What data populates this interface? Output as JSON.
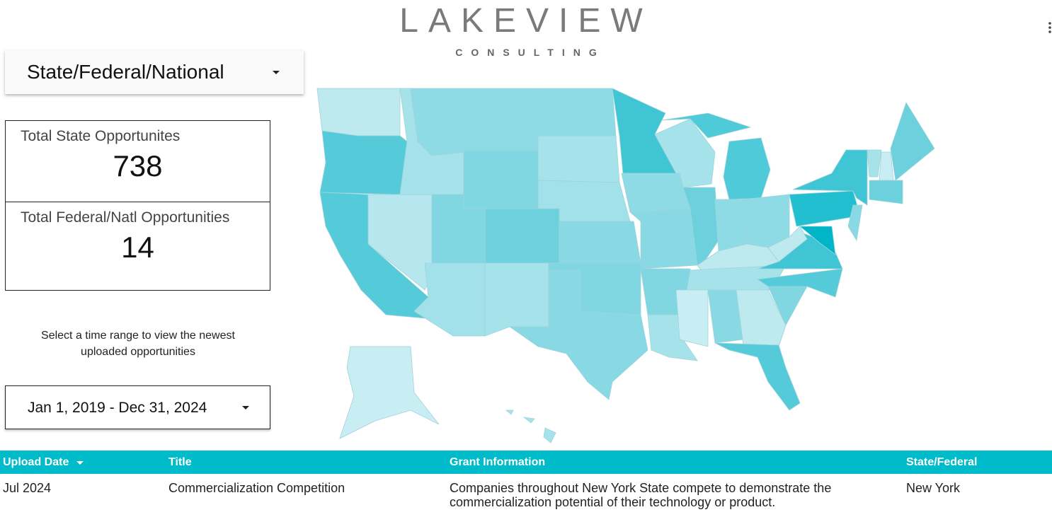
{
  "logo": {
    "title": "LAKEVIEW",
    "subtitle": "CONSULTING"
  },
  "dropdown": {
    "label": "State/Federal/National"
  },
  "scorecards": [
    {
      "label": "Total State Opportunites",
      "value": 738
    },
    {
      "label": "Total Federal/Natl Opportunities",
      "value": 14
    }
  ],
  "note": "Select a time range to view the newest uploaded opportunities",
  "date_range": {
    "label": "Jan 1, 2019 - Dec 31, 2024"
  },
  "table": {
    "columns": [
      "Upload Date",
      "Title",
      "Grant Information",
      "State/Federal"
    ],
    "rows": [
      [
        "Jul 2024",
        "Commercialization Competition",
        "Companies throughout New York State compete to demonstrate the commercialization potential of their technology or product.",
        "New York"
      ]
    ]
  }
}
